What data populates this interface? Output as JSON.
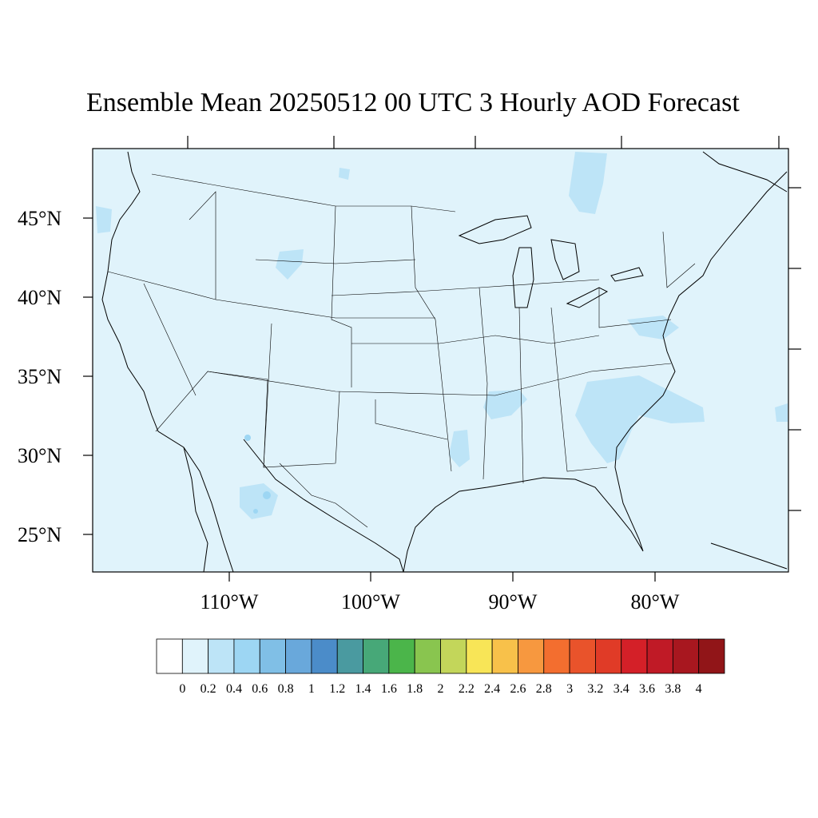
{
  "title": "Ensemble Mean 20250512 00 UTC 3 Hourly AOD Forecast",
  "map": {
    "background_color": "#e0f3fb",
    "lat_labels": [
      "45°N",
      "40°N",
      "35°N",
      "30°N",
      "25°N"
    ],
    "lon_labels": [
      "110°W",
      "100°W",
      "90°W",
      "80°W"
    ]
  },
  "colorbar": {
    "colors": [
      "#ffffff",
      "#e0f3fb",
      "#bde4f7",
      "#9dd6f3",
      "#80bfe6",
      "#69a8db",
      "#4b8cc9",
      "#4a9aa0",
      "#47a878",
      "#4bb54a",
      "#89c54f",
      "#c3d65a",
      "#f8e557",
      "#f8c14a",
      "#f7983f",
      "#f36e2f",
      "#e9532b",
      "#e03b27",
      "#d42028",
      "#c01a26",
      "#a8171f",
      "#911518"
    ],
    "labels": [
      "0",
      "0.2",
      "0.4",
      "0.6",
      "0.8",
      "1",
      "1.2",
      "1.4",
      "1.6",
      "1.8",
      "2",
      "2.2",
      "2.4",
      "2.6",
      "2.8",
      "3",
      "3.2",
      "3.4",
      "3.6",
      "3.8",
      "4"
    ]
  }
}
